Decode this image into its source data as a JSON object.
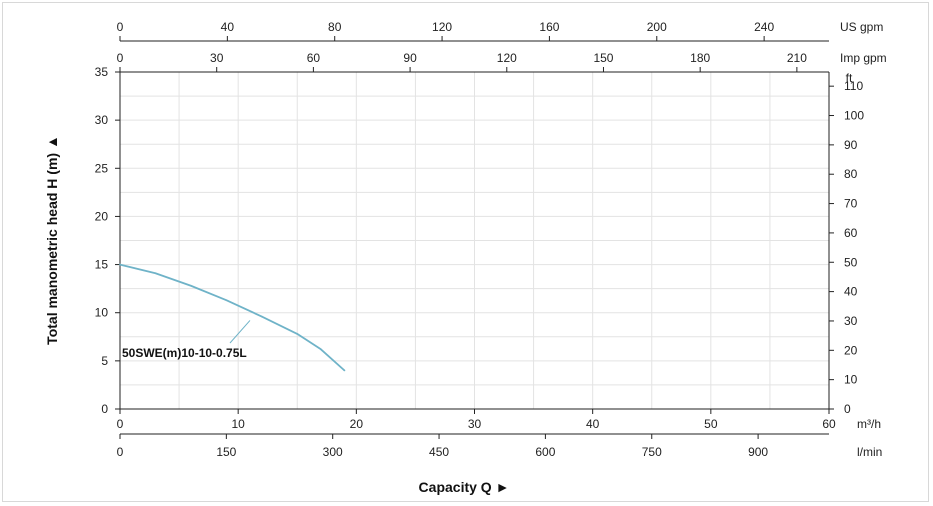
{
  "chart_data": {
    "type": "line",
    "x_axis": {
      "label": "Capacity Q",
      "unit": "m³/h",
      "range": [
        0,
        60
      ],
      "ticks": [
        0,
        10,
        20,
        30,
        40,
        50,
        60
      ]
    },
    "y_axis": {
      "label": "Total manometric head H (m)",
      "range": [
        0,
        35
      ],
      "ticks": [
        0,
        5,
        10,
        15,
        20,
        25,
        30,
        35
      ]
    },
    "secondary_axes": {
      "us_gpm": {
        "unit": "US gpm",
        "ticks": [
          0,
          40,
          80,
          120,
          160,
          200,
          240
        ]
      },
      "imp_gpm": {
        "unit": "Imp gpm",
        "ticks": [
          0,
          30,
          60,
          90,
          120,
          150,
          180,
          210
        ]
      },
      "l_min": {
        "unit": "l/min",
        "ticks": [
          0,
          150,
          300,
          450,
          600,
          750,
          900
        ]
      },
      "ft": {
        "unit": "ft",
        "ticks": [
          0,
          10,
          20,
          30,
          40,
          50,
          60,
          70,
          80,
          90,
          100,
          110
        ]
      }
    },
    "grid": true,
    "series": [
      {
        "name": "50SWE(m)10-10-0.75L",
        "color": "#6fb3c8",
        "x": [
          0,
          3,
          6,
          9,
          12,
          15,
          17,
          19
        ],
        "y": [
          15,
          14.1,
          12.8,
          11.3,
          9.6,
          7.8,
          6.2,
          4.0
        ]
      }
    ]
  }
}
